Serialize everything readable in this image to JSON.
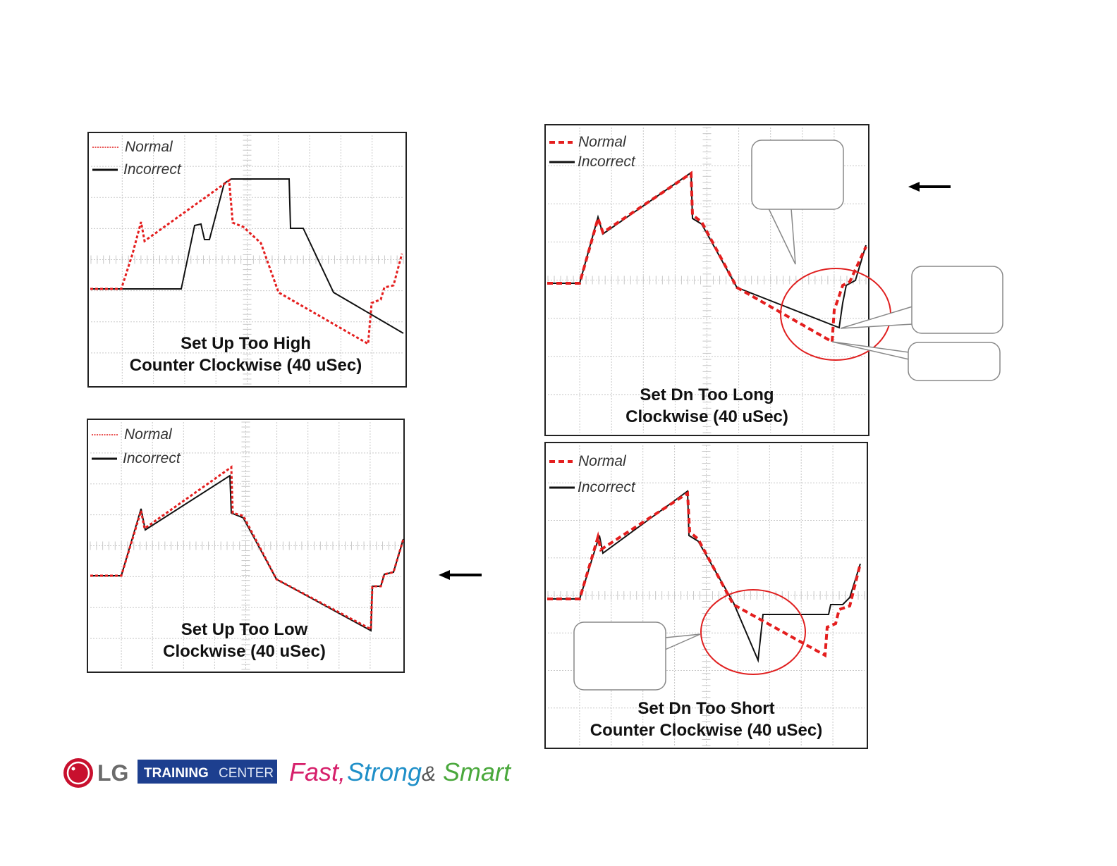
{
  "panels": [
    {
      "legend": [
        "Normal",
        "Incorrect"
      ],
      "caption": [
        "Set Up Too High",
        "Counter Clockwise (40 uSec)"
      ]
    },
    {
      "legend": [
        "Normal",
        "Incorrect"
      ],
      "caption": [
        "Set Up Too Low",
        "Clockwise (40 uSec)"
      ]
    },
    {
      "legend": [
        "Normal",
        "Incorrect"
      ],
      "caption": [
        "Set Dn Too Long",
        "Clockwise (40 uSec)"
      ]
    },
    {
      "legend": [
        "Normal",
        "Incorrect"
      ],
      "caption": [
        "Set Dn Too Short",
        "Counter Clockwise (40 uSec)"
      ]
    }
  ],
  "logo": {
    "brand": "LG",
    "training": "TRAINING",
    "center": "CENTER",
    "slogan": [
      "Fast,",
      "Strong",
      "&",
      "Smart"
    ]
  }
}
